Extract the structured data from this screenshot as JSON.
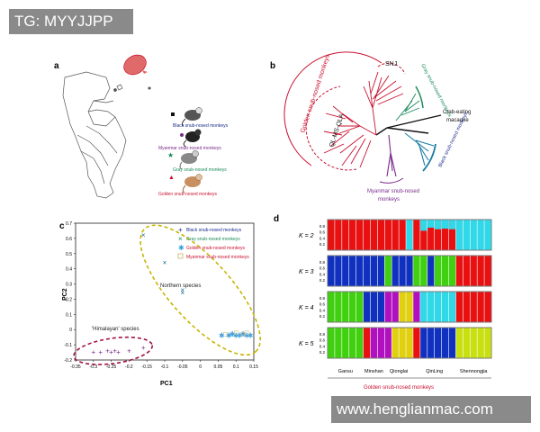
{
  "watermark_top": "TG: MYYJJPP",
  "watermark_bottom": "www.henglianmac.com",
  "panels": {
    "a": "a",
    "b": "b",
    "c": "c",
    "d": "d"
  },
  "colors": {
    "black": "#1a2a8a",
    "myanmar": "#7a2a8a",
    "gray": "#1a8a5a",
    "golden": "#c8102e",
    "yellow": "#c8b400",
    "cyan": "#30d0e0",
    "green": "#40d010",
    "blue": "#1030c0",
    "red": "#e81010",
    "magenta": "#c010c0",
    "lime": "#c0e010"
  },
  "map_legend": [
    {
      "label": "Black snub-nosed monkeys",
      "color": "#1a2a8a"
    },
    {
      "label": "Myanmar snub-nosed monkeys",
      "color": "#7a2a8a"
    },
    {
      "label": "Gray snub-nosed monkeys",
      "color": "#1a8a5a"
    },
    {
      "label": "Golden snub-nosed monkeys",
      "color": "#c8102e"
    }
  ],
  "tree_labels": {
    "golden": "Golden snub-nosed monkeys",
    "snj": "SNJ",
    "ql": "QL-MS-QLA",
    "gray": "Gray snub-nosed monkeys",
    "crab": "Crab-eating macaque",
    "black": "Black snub-nosed monkeys",
    "myanmar": "Myanmar snub-nosed monkeys"
  },
  "chart_data": [
    {
      "type": "scatter",
      "xlabel": "PC1",
      "ylabel": "PC2",
      "xlim": [
        -0.35,
        0.15
      ],
      "ylim": [
        -0.2,
        0.7
      ],
      "xticks": [
        "-0.35",
        "-0.3",
        "-0.25",
        "-0.2",
        "-0.15",
        "-0.1",
        "-0.05",
        "0",
        "0.05",
        "0.1",
        "0.15"
      ],
      "yticks": [
        "-0.2",
        "-0.1",
        "0",
        "0.1",
        "0.2",
        "0.3",
        "0.4",
        "0.5",
        "0.6",
        "0.7"
      ],
      "legend": [
        {
          "label": "Black snub-nosed monkeys",
          "marker": "+",
          "color": "#1a2a8a"
        },
        {
          "label": "Gray snub-nosed monkeys",
          "marker": "x",
          "color": "#1a8a5a"
        },
        {
          "label": "Golden snub-nosed monkeys",
          "marker": "*",
          "color": "#30a0e0"
        },
        {
          "label": "Myanmar snub-nosed monkeys",
          "marker": "square",
          "color": "#d0c080"
        }
      ],
      "annotations": [
        "Northern species",
        "'Himalayan' species"
      ],
      "series": [
        {
          "name": "Black snub-nosed monkeys",
          "marker": "+",
          "color": "#7a2a8a",
          "points": [
            [
              -0.3,
              -0.15
            ],
            [
              -0.28,
              -0.15
            ],
            [
              -0.26,
              -0.14
            ],
            [
              -0.25,
              -0.15
            ],
            [
              -0.24,
              -0.14
            ],
            [
              -0.23,
              -0.15
            ],
            [
              -0.2,
              -0.14
            ],
            [
              -0.16,
              -0.12
            ]
          ]
        },
        {
          "name": "Gray snub-nosed monkeys",
          "marker": "x",
          "color": "#1a6a9a",
          "points": [
            [
              -0.16,
              0.62
            ],
            [
              -0.1,
              0.44
            ],
            [
              -0.05,
              0.26
            ],
            [
              -0.05,
              0.24
            ]
          ]
        },
        {
          "name": "Golden snub-nosed monkeys",
          "marker": "*",
          "color": "#40a0e0",
          "points": [
            [
              0.06,
              -0.04
            ],
            [
              0.08,
              -0.04
            ],
            [
              0.09,
              -0.03
            ],
            [
              0.1,
              -0.04
            ],
            [
              0.11,
              -0.04
            ],
            [
              0.12,
              -0.03
            ],
            [
              0.13,
              -0.04
            ],
            [
              0.14,
              -0.04
            ]
          ]
        },
        {
          "name": "Myanmar snub-nosed monkeys",
          "marker": "square",
          "color": "#d0c080",
          "points": [
            [
              0.07,
              -0.03
            ],
            [
              0.1,
              -0.02
            ],
            [
              0.12,
              -0.03
            ],
            [
              0.13,
              -0.02
            ]
          ]
        }
      ]
    },
    {
      "type": "bar",
      "title": "",
      "rows": [
        {
          "k": "K = 2",
          "segs": [
            [
              "red",
              0,
              11
            ],
            [
              "cyan",
              11,
              12
            ],
            [
              "red",
              12,
              14
            ],
            [
              "red",
              14,
              18
            ],
            [
              "cyan",
              18,
              23
            ]
          ]
        },
        {
          "k": "K = 3",
          "segs": [
            [
              "blue",
              0,
              8
            ],
            [
              "green",
              8,
              9
            ],
            [
              "blue",
              9,
              12
            ],
            [
              "green",
              12,
              14
            ],
            [
              "blue",
              14,
              15
            ],
            [
              "green",
              15,
              18
            ],
            [
              "red",
              18,
              23
            ]
          ]
        },
        {
          "k": "K = 4",
          "segs": [
            [
              "green",
              0,
              5
            ],
            [
              "blue",
              5,
              8
            ],
            [
              "magenta",
              8,
              10
            ],
            [
              "yellow2",
              10,
              12
            ],
            [
              "magenta",
              12,
              13
            ],
            [
              "cyan",
              13,
              18
            ],
            [
              "red",
              18,
              23
            ]
          ]
        },
        {
          "k": "K = 5",
          "segs": [
            [
              "green",
              0,
              5
            ],
            [
              "red",
              5,
              6
            ],
            [
              "magenta",
              6,
              9
            ],
            [
              "yellow2",
              9,
              12
            ],
            [
              "red",
              12,
              13
            ],
            [
              "blue",
              13,
              18
            ],
            [
              "lime",
              18,
              23
            ]
          ]
        }
      ],
      "yticks": [
        "0.2",
        "0.4",
        "0.6",
        "0.8"
      ],
      "groups": [
        "Gansu",
        "Minshan",
        "Qionglai",
        "QinLing",
        "Shennongjia"
      ],
      "footer": "Golden snub-nosed monkeys"
    }
  ]
}
